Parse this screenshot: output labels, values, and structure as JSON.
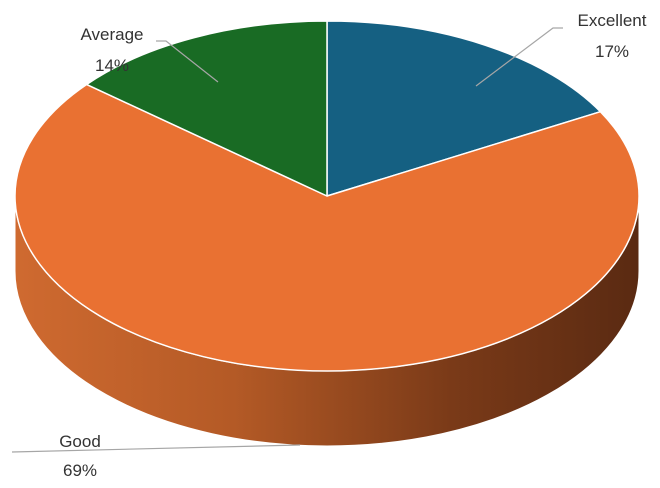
{
  "chart_data": {
    "type": "pie",
    "style": "3d",
    "legend": "none",
    "slices": [
      {
        "name": "Excellent",
        "value": 17,
        "label": "17%",
        "color": "#156082"
      },
      {
        "name": "Good",
        "value": 69,
        "label": "69%",
        "color": "#E97132"
      },
      {
        "name": "Average",
        "value": 14,
        "label": "14%",
        "color": "#196B24"
      }
    ]
  }
}
